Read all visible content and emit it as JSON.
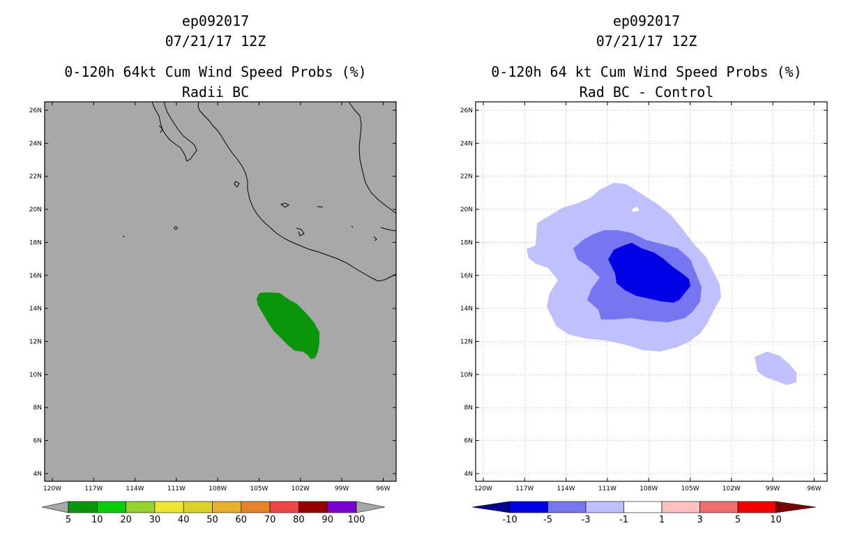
{
  "left": {
    "storm_id": "ep092017",
    "datetime": "07/21/17 12Z",
    "title": "0-120h 64kt Cum Wind Speed Probs (%)",
    "subtitle": "Radii BC",
    "background_color": "#a8a8a8",
    "contour_color": "#0a960a",
    "colorbar": {
      "labels": [
        "5",
        "10",
        "20",
        "30",
        "40",
        "50",
        "60",
        "70",
        "80",
        "90",
        "100"
      ],
      "colors": [
        "#0a960a",
        "#0acd0a",
        "#96d22d",
        "#f0e632",
        "#dcd228",
        "#e6af2d",
        "#e68228",
        "#f04646",
        "#960000",
        "#7a00d2"
      ],
      "end_color": "#a8a8a8"
    }
  },
  "right": {
    "storm_id": "ep092017",
    "datetime": "07/21/17 12Z",
    "title": "0-120h 64 kt Cum Wind Speed Probs (%)",
    "subtitle": "Rad BC - Control",
    "background_color": "#ffffff",
    "contour_colors": [
      "#c0c0ff",
      "#7676f0",
      "#0000e6"
    ],
    "colorbar": {
      "labels": [
        "-10",
        "-5",
        "-3",
        "-1",
        "1",
        "3",
        "5",
        "10"
      ],
      "colors": [
        "#0000e6",
        "#7676f0",
        "#c0c0ff",
        "#ffffff",
        "#ffc0c0",
        "#f06e6e",
        "#f00000"
      ],
      "left_end_color": "#00008c",
      "right_end_color": "#780000"
    }
  },
  "map": {
    "lat_labels": [
      "26N",
      "24N",
      "22N",
      "20N",
      "18N",
      "16N",
      "14N",
      "12N",
      "10N",
      "8N",
      "6N",
      "4N"
    ],
    "lon_labels": [
      "120W",
      "117W",
      "114W",
      "111W",
      "108W",
      "105W",
      "102W",
      "99W",
      "96W"
    ]
  }
}
